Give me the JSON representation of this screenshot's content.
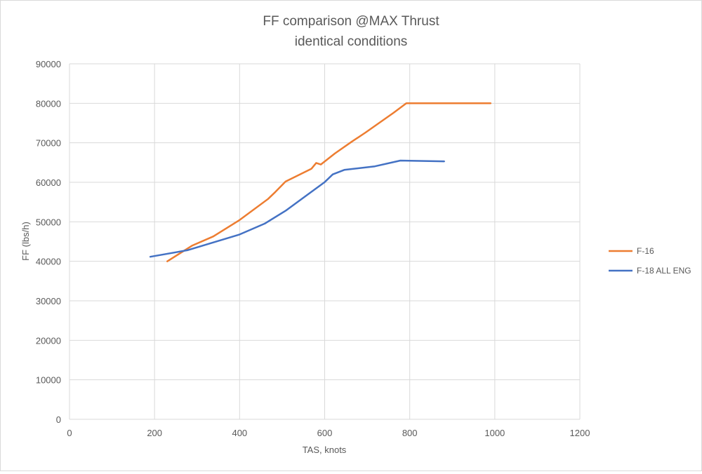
{
  "chart_data": {
    "type": "line",
    "title": [
      "FF comparison @MAX Thrust",
      "identical conditions"
    ],
    "xlabel": "TAS, knots",
    "ylabel": "FF (lbs/h)",
    "xlim": [
      0,
      1200
    ],
    "ylim": [
      0,
      90000
    ],
    "xticks": [
      0,
      200,
      400,
      600,
      800,
      1000,
      1200
    ],
    "yticks": [
      0,
      10000,
      20000,
      30000,
      40000,
      50000,
      60000,
      70000,
      80000,
      90000
    ],
    "grid": true,
    "legend_position": "right",
    "series": [
      {
        "name": "F-16",
        "color": "#ED7D31",
        "x": [
          230,
          288,
          338,
          400,
          467,
          484,
          508,
          569,
          580,
          591,
          624,
          663,
          696,
          762,
          792,
          990
        ],
        "y": [
          40000,
          43950,
          46300,
          50450,
          55800,
          57550,
          60200,
          63450,
          64900,
          64500,
          67300,
          70250,
          72600,
          77600,
          80000,
          80000
        ]
      },
      {
        "name": "F-18 ALL ENG",
        "color": "#4472C4",
        "x": [
          190,
          277,
          400,
          459,
          508,
          553,
          600,
          619,
          646,
          718,
          778,
          881
        ],
        "y": [
          41150,
          42800,
          46800,
          49550,
          52800,
          56350,
          60050,
          62000,
          63150,
          64050,
          65500,
          65300
        ]
      }
    ]
  }
}
